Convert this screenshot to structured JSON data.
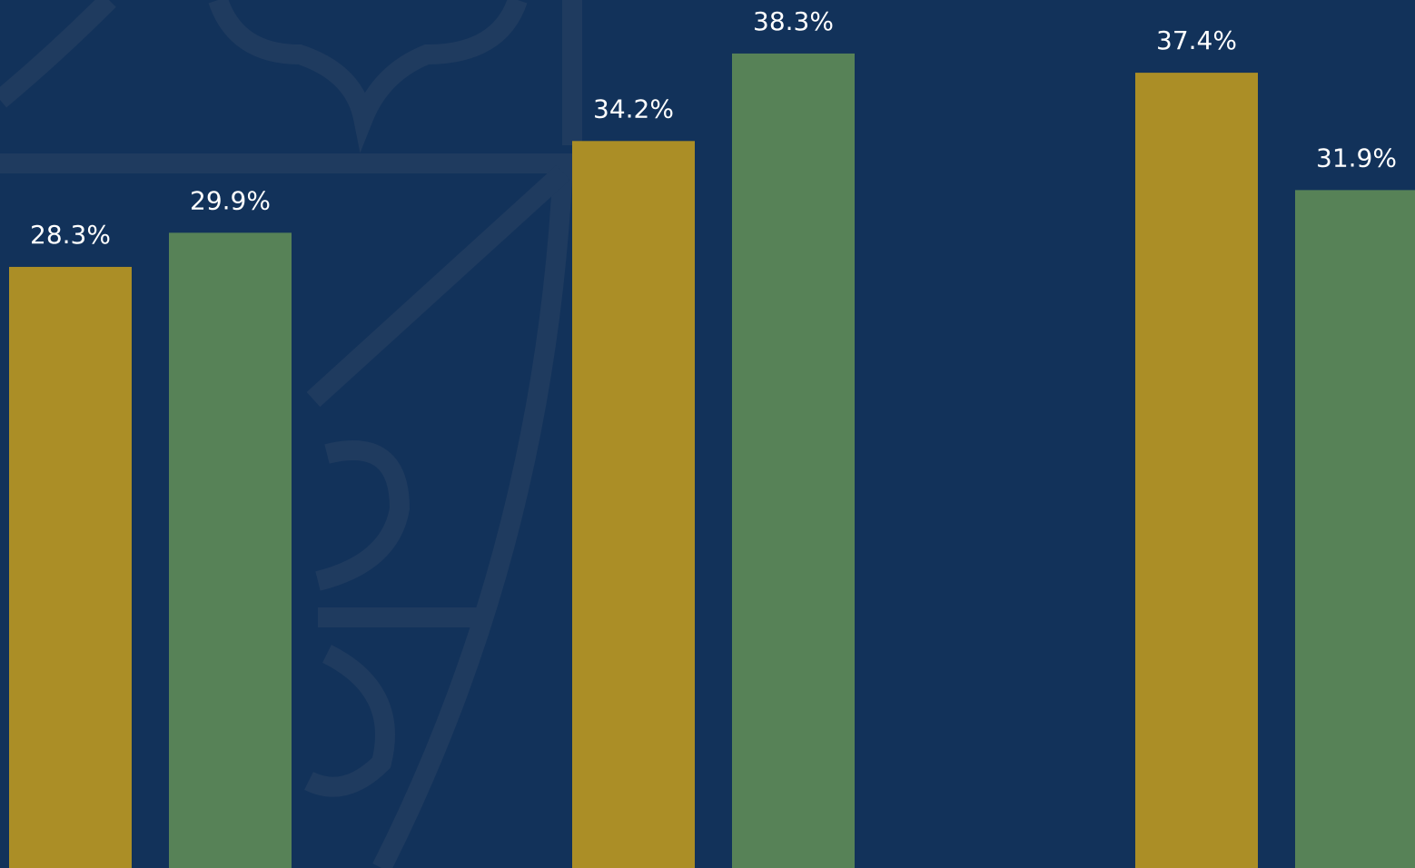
{
  "chart_data": {
    "type": "bar",
    "categories": [
      null,
      null,
      null
    ],
    "series": [
      {
        "color": "#ab8e26",
        "values": [
          28.3,
          34.2,
          37.4
        ],
        "value_labels": [
          "28.3%",
          "34.2%",
          "37.4%"
        ]
      },
      {
        "color": "#578257",
        "values": [
          29.9,
          38.3,
          31.9
        ],
        "value_labels": [
          "29.9%",
          "38.3%",
          "31.9%"
        ]
      }
    ]
  }
}
